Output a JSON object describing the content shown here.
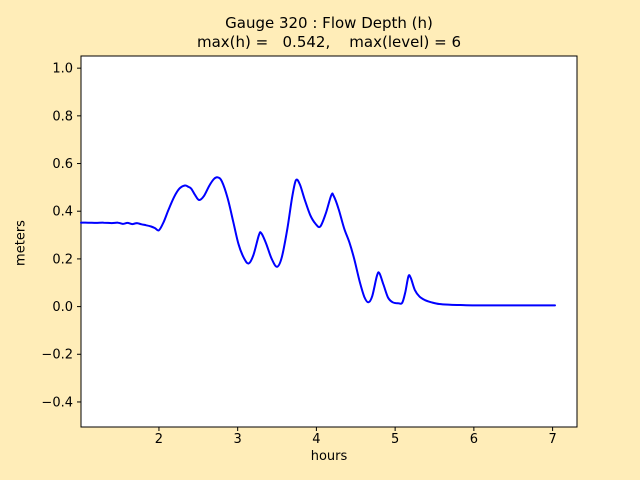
{
  "figure": {
    "background_color": "#ffedb8",
    "plot_background_color": "#ffffff",
    "axis_color": "#000000",
    "tick_label_color": "#000000"
  },
  "chart_data": {
    "type": "line",
    "title": "Gauge 320 : Flow Depth (h)",
    "subtitle": "max(h) =   0.542,    max(level) = 6",
    "xlabel": "hours",
    "ylabel": "meters",
    "max_h": 0.542,
    "max_level": 6,
    "xlim": [
      1.01,
      7.31
    ],
    "ylim": [
      -0.505,
      1.051
    ],
    "grid": false,
    "legend_position": "none",
    "xticks": [
      {
        "v": 2,
        "label": "2"
      },
      {
        "v": 3,
        "label": "3"
      },
      {
        "v": 4,
        "label": "4"
      },
      {
        "v": 5,
        "label": "5"
      },
      {
        "v": 6,
        "label": "6"
      },
      {
        "v": 7,
        "label": "7"
      }
    ],
    "yticks": [
      {
        "v": 1.0,
        "label": "1.0"
      },
      {
        "v": 0.8,
        "label": "0.8"
      },
      {
        "v": 0.6,
        "label": "0.6"
      },
      {
        "v": 0.4,
        "label": "0.4"
      },
      {
        "v": 0.2,
        "label": "0.2"
      },
      {
        "v": 0.0,
        "label": "0.0"
      },
      {
        "v": -0.2,
        "label": "−0.2"
      },
      {
        "v": -0.4,
        "label": "−0.4"
      }
    ],
    "series": [
      {
        "name": "flow-depth-h",
        "color": "#0000ff",
        "line_width": 2,
        "points": [
          [
            1.01,
            0.352
          ],
          [
            1.1,
            0.352
          ],
          [
            1.2,
            0.351
          ],
          [
            1.3,
            0.352
          ],
          [
            1.4,
            0.35
          ],
          [
            1.48,
            0.352
          ],
          [
            1.54,
            0.347
          ],
          [
            1.6,
            0.351
          ],
          [
            1.66,
            0.346
          ],
          [
            1.72,
            0.35
          ],
          [
            1.78,
            0.345
          ],
          [
            1.84,
            0.341
          ],
          [
            1.9,
            0.336
          ],
          [
            1.95,
            0.329
          ],
          [
            2.0,
            0.32
          ],
          [
            2.06,
            0.355
          ],
          [
            2.12,
            0.405
          ],
          [
            2.19,
            0.458
          ],
          [
            2.26,
            0.495
          ],
          [
            2.33,
            0.508
          ],
          [
            2.37,
            0.503
          ],
          [
            2.41,
            0.495
          ],
          [
            2.46,
            0.467
          ],
          [
            2.51,
            0.447
          ],
          [
            2.57,
            0.463
          ],
          [
            2.64,
            0.507
          ],
          [
            2.7,
            0.536
          ],
          [
            2.75,
            0.542
          ],
          [
            2.8,
            0.525
          ],
          [
            2.87,
            0.458
          ],
          [
            2.94,
            0.362
          ],
          [
            3.01,
            0.262
          ],
          [
            3.08,
            0.203
          ],
          [
            3.14,
            0.181
          ],
          [
            3.2,
            0.216
          ],
          [
            3.27,
            0.3
          ],
          [
            3.3,
            0.308
          ],
          [
            3.36,
            0.266
          ],
          [
            3.43,
            0.202
          ],
          [
            3.5,
            0.167
          ],
          [
            3.56,
            0.207
          ],
          [
            3.63,
            0.325
          ],
          [
            3.69,
            0.455
          ],
          [
            3.74,
            0.53
          ],
          [
            3.79,
            0.512
          ],
          [
            3.85,
            0.45
          ],
          [
            3.92,
            0.385
          ],
          [
            3.99,
            0.347
          ],
          [
            4.05,
            0.336
          ],
          [
            4.12,
            0.392
          ],
          [
            4.19,
            0.468
          ],
          [
            4.22,
            0.464
          ],
          [
            4.28,
            0.412
          ],
          [
            4.35,
            0.33
          ],
          [
            4.42,
            0.268
          ],
          [
            4.48,
            0.2
          ],
          [
            4.55,
            0.105
          ],
          [
            4.61,
            0.04
          ],
          [
            4.66,
            0.018
          ],
          [
            4.71,
            0.045
          ],
          [
            4.77,
            0.13
          ],
          [
            4.8,
            0.14
          ],
          [
            4.85,
            0.094
          ],
          [
            4.91,
            0.038
          ],
          [
            4.97,
            0.018
          ],
          [
            5.04,
            0.014
          ],
          [
            5.09,
            0.016
          ],
          [
            5.13,
            0.062
          ],
          [
            5.17,
            0.128
          ],
          [
            5.2,
            0.119
          ],
          [
            5.25,
            0.07
          ],
          [
            5.31,
            0.042
          ],
          [
            5.38,
            0.027
          ],
          [
            5.46,
            0.018
          ],
          [
            5.56,
            0.011
          ],
          [
            5.7,
            0.008
          ],
          [
            5.9,
            0.006
          ],
          [
            6.2,
            0.005
          ],
          [
            6.6,
            0.005
          ],
          [
            7.03,
            0.005
          ]
        ]
      }
    ]
  }
}
